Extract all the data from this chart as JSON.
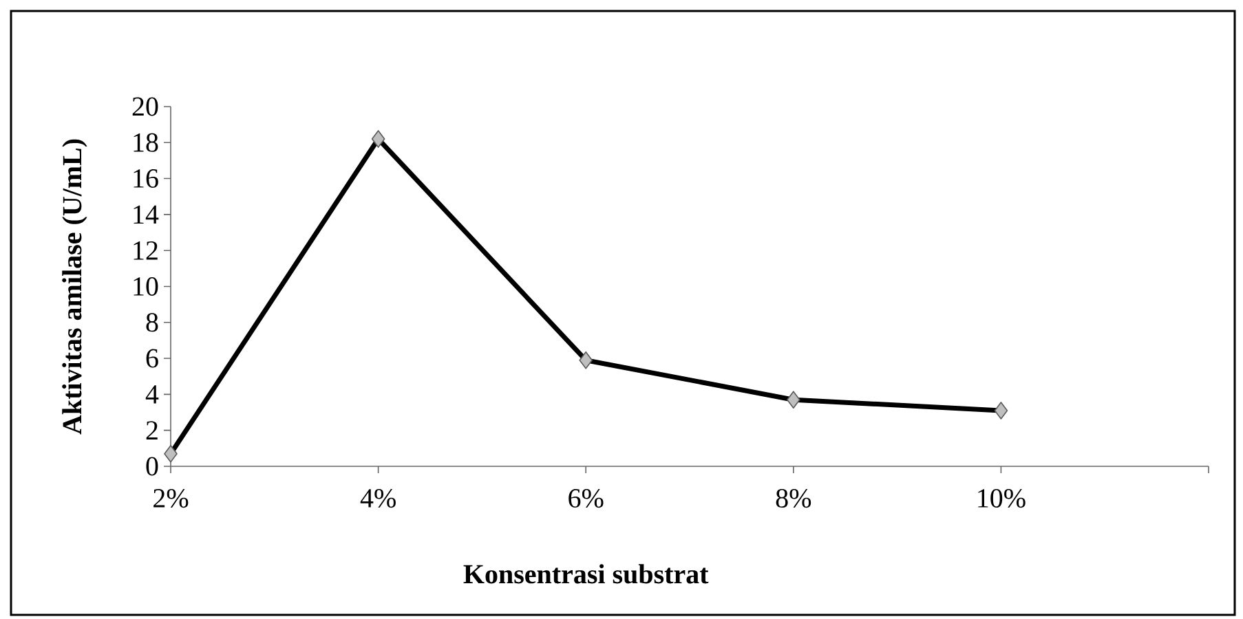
{
  "chart_data": {
    "type": "line",
    "xlabel": "Konsentrasi substrat",
    "ylabel": "Aktivitas amilase  (U/mL)",
    "categories": [
      "2%",
      "4%",
      "6%",
      "8%",
      "10%",
      null
    ],
    "series": [
      {
        "color": "#000000",
        "values": [
          0.7,
          18.2,
          5.9,
          3.7,
          3.1,
          null
        ]
      }
    ],
    "ylim": [
      0,
      20
    ],
    "yticks": [
      0,
      2,
      4,
      6,
      8,
      10,
      12,
      14,
      16,
      18,
      20
    ],
    "marker": "diamond",
    "line_style": "solid"
  }
}
